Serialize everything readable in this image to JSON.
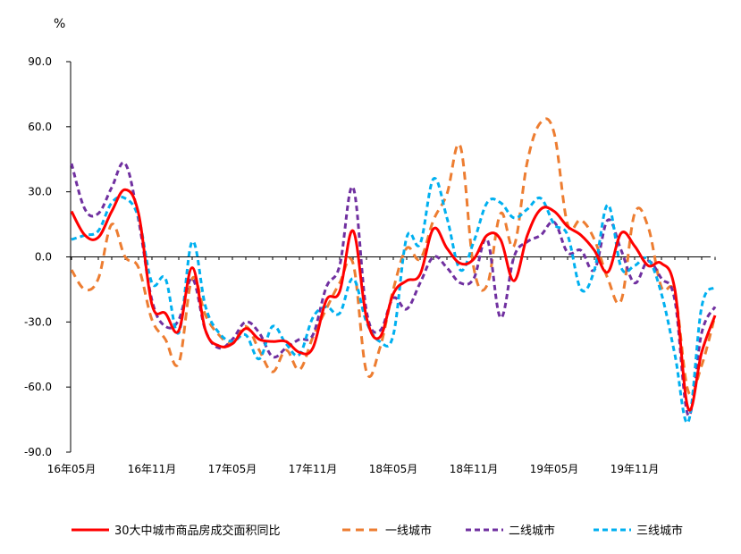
{
  "chart_data": {
    "type": "line",
    "unit_label": "%",
    "ylim": [
      -90,
      90
    ],
    "y_ticks": [
      "90.0",
      "60.0",
      "30.0",
      "0.0",
      "-30.0",
      "-60.0",
      "-90.0"
    ],
    "x_start": "2016-05",
    "x_tick_labels": [
      "16年05月",
      "16年11月",
      "17年05月",
      "17年11月",
      "18年05月",
      "18年11月",
      "19年05月",
      "19年11月"
    ],
    "legend_position": "bottom",
    "series": [
      {
        "name": "30大中城市商品房成交面积同比",
        "color": "#ff0000",
        "style": "solid",
        "values": [
          21,
          10,
          9,
          21,
          31,
          20,
          -22,
          -26,
          -34,
          -5,
          -34,
          -41,
          -40,
          -33,
          -38,
          -39,
          -39,
          -44,
          -42,
          -20,
          -16,
          12,
          -28,
          -37,
          -17,
          -11,
          -8,
          13,
          4,
          -3,
          -1,
          10,
          8,
          -11,
          10,
          22,
          21,
          14,
          10,
          3,
          -7,
          11,
          5,
          -4,
          -3,
          -15,
          -70,
          -44,
          -27
        ]
      },
      {
        "name": "一线城市",
        "color": "#ed7d31",
        "style": "dash",
        "values": [
          -6,
          -15,
          -10,
          15,
          0,
          -5,
          -29,
          -38,
          -49,
          -10,
          -27,
          -36,
          -40,
          -32,
          -43,
          -53,
          -43,
          -52,
          -37,
          -24,
          -12,
          -3,
          -53,
          -42,
          -15,
          4,
          -1,
          17,
          29,
          51,
          -5,
          -13,
          20,
          5,
          44,
          62,
          57,
          15,
          17,
          8,
          -10,
          -20,
          20,
          14,
          -14,
          -17,
          -62,
          -50,
          -27
        ]
      },
      {
        "name": "二线城市",
        "color": "#7030a0",
        "style": "dash",
        "values": [
          43,
          22,
          20,
          32,
          43,
          17,
          -20,
          -32,
          -29,
          -10,
          -34,
          -42,
          -38,
          -30,
          -35,
          -46,
          -42,
          -38,
          -36,
          -14,
          -4,
          32,
          -25,
          -34,
          -19,
          -24,
          -12,
          0,
          -5,
          -12,
          -10,
          8,
          -28,
          0,
          7,
          10,
          16,
          2,
          3,
          -6,
          17,
          3,
          -12,
          -2,
          -10,
          -20,
          -73,
          -35,
          -23
        ]
      },
      {
        "name": "三线城市",
        "color": "#00b0f0",
        "style": "dash",
        "values": [
          8,
          10,
          12,
          25,
          27,
          18,
          -12,
          -10,
          -35,
          7,
          -23,
          -35,
          -39,
          -36,
          -47,
          -32,
          -40,
          -45,
          -28,
          -23,
          -26,
          -10,
          -30,
          -39,
          -36,
          9,
          6,
          36,
          18,
          -6,
          7,
          25,
          25,
          18,
          22,
          27,
          15,
          10,
          -15,
          -6,
          24,
          -5,
          -4,
          -1,
          -17,
          -45,
          -76,
          -23,
          -14
        ]
      }
    ]
  }
}
